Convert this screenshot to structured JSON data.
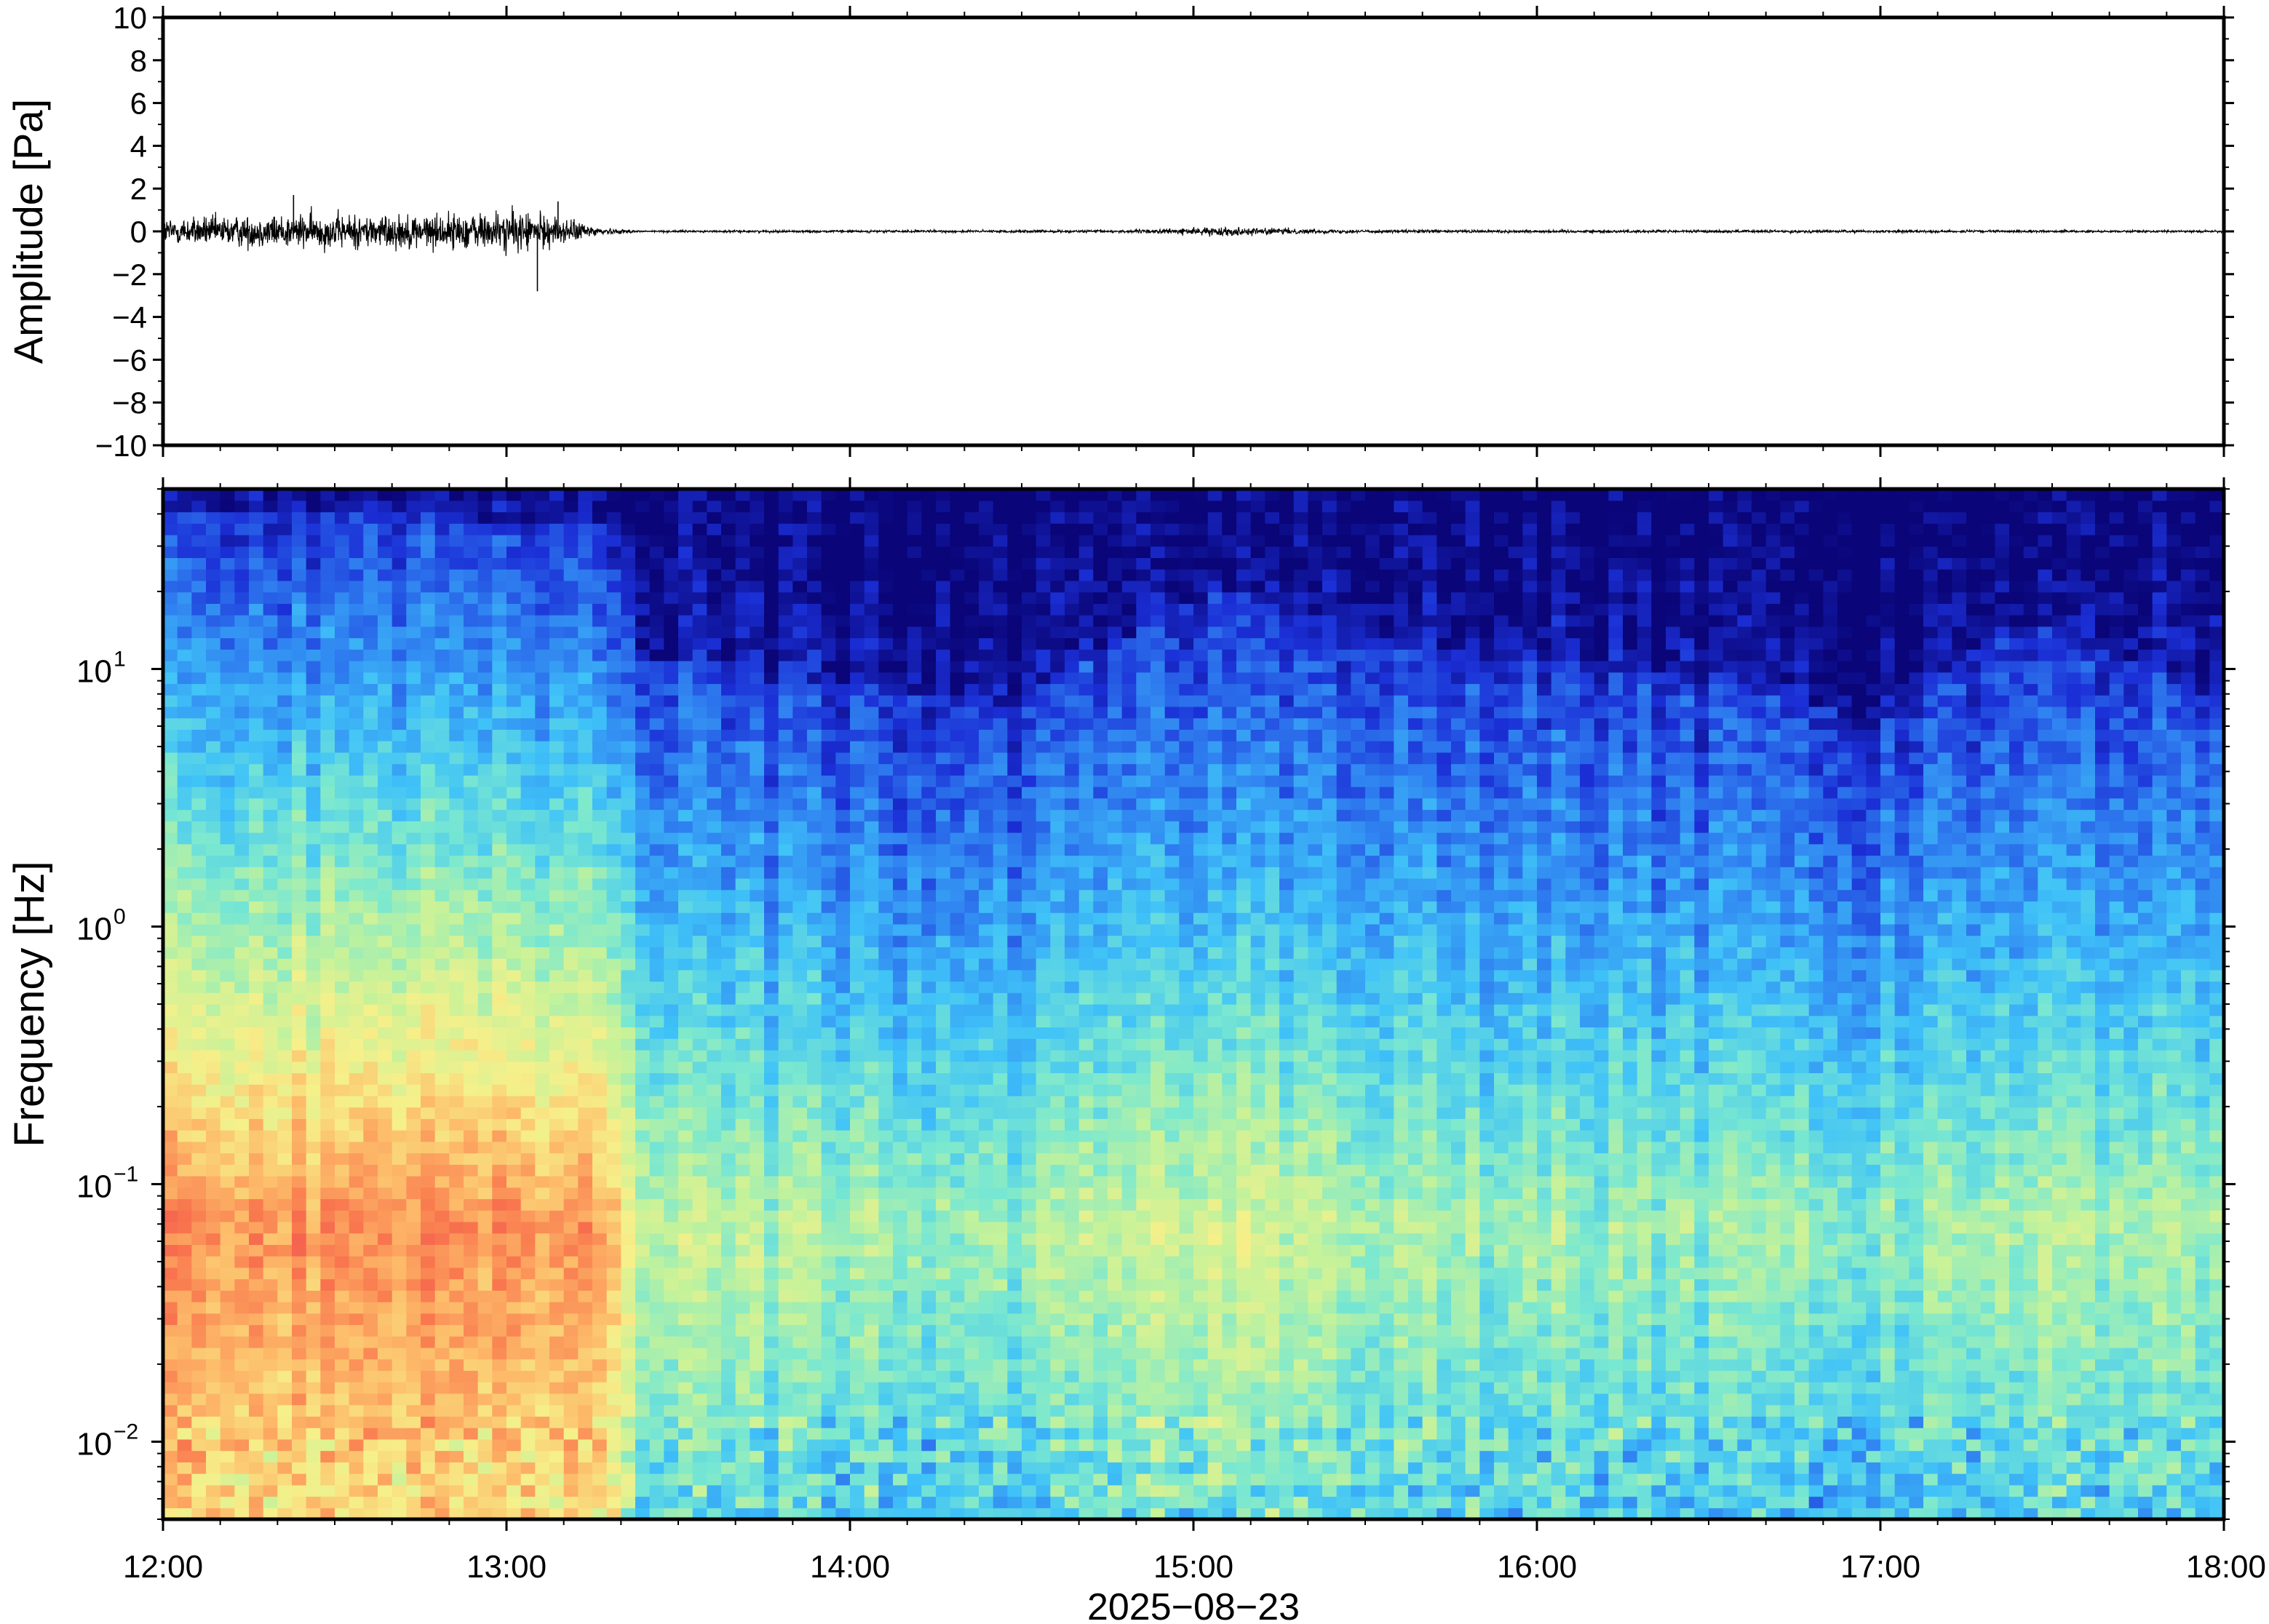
{
  "chart_data": [
    {
      "type": "line",
      "ylabel": "Amplitude [Pa]",
      "ylim": [
        -10,
        10
      ],
      "yticks": [
        -10,
        -8,
        -6,
        -4,
        -2,
        0,
        2,
        4,
        6,
        8,
        10
      ],
      "ytick_labels": [
        "−10",
        "−8",
        "−6",
        "−4",
        "−2",
        "0",
        "2",
        "4",
        "6",
        "8",
        "10"
      ],
      "xlim_hours": [
        12,
        18
      ],
      "series": [
        {
          "description_points": [
            {
              "t": 12.0,
              "env": 0.8
            },
            {
              "t": 12.4,
              "env": 1.0
            },
            {
              "t": 12.8,
              "env": 1.0
            },
            {
              "t": 13.05,
              "env": 1.2
            },
            {
              "t": 13.2,
              "env": 0.6
            },
            {
              "t": 13.3,
              "env": 0.15
            },
            {
              "t": 13.4,
              "env": 0.06
            },
            {
              "t": 14.8,
              "env": 0.08
            },
            {
              "t": 15.1,
              "env": 0.25
            },
            {
              "t": 15.4,
              "env": 0.1
            },
            {
              "t": 18.0,
              "env": 0.06
            }
          ],
          "peaks": [
            {
              "t": 12.38,
              "value": 1.7
            },
            {
              "t": 13.09,
              "value": -2.8
            },
            {
              "t": 13.15,
              "value": 1.4
            }
          ]
        }
      ]
    },
    {
      "type": "heatmap",
      "ylabel": "Frequency [Hz]",
      "yscale": "log",
      "ylim": [
        0.005,
        50
      ],
      "ytick_values": [
        0.01,
        0.1,
        1,
        10
      ],
      "ytick_labels": [
        {
          "base": "10",
          "exp": "−2"
        },
        {
          "base": "10",
          "exp": "−1"
        },
        {
          "base": "10",
          "exp": "0"
        },
        {
          "base": "10",
          "exp": "1"
        }
      ],
      "xlabel": "2025−08−23",
      "xlim_hours": [
        12,
        18
      ],
      "xticks_hours": [
        12,
        13,
        14,
        15,
        16,
        17,
        18
      ],
      "xtick_labels": [
        "12:00",
        "13:00",
        "14:00",
        "15:00",
        "16:00",
        "17:00",
        "18:00"
      ],
      "colormap": [
        "#0a0578",
        "#1b2fd6",
        "#2f7ff0",
        "#3fc2f8",
        "#7ae8d0",
        "#c4f29a",
        "#f6f08a",
        "#fdbc6a",
        "#f9784e",
        "#f05050"
      ],
      "noise_floor_profile": [
        {
          "t": 12.0,
          "f_top": 40,
          "level_low": 0.85
        },
        {
          "t": 13.3,
          "f_top": 38,
          "level_low": 0.85
        },
        {
          "t": 13.4,
          "f_top": 11,
          "level_low": 0.55
        },
        {
          "t": 14.5,
          "f_top": 7,
          "level_low": 0.5
        },
        {
          "t": 15.1,
          "f_top": 20,
          "level_low": 0.62
        },
        {
          "t": 15.6,
          "f_top": 12,
          "level_low": 0.52
        },
        {
          "t": 16.5,
          "f_top": 9,
          "level_low": 0.5
        },
        {
          "t": 17.0,
          "f_top": 6,
          "level_low": 0.48
        },
        {
          "t": 17.4,
          "f_top": 15,
          "level_low": 0.55
        },
        {
          "t": 18.0,
          "f_top": 7,
          "level_low": 0.5
        }
      ]
    }
  ],
  "colors": {
    "frame": "#000000",
    "trace": "#000000",
    "background": "#ffffff"
  }
}
